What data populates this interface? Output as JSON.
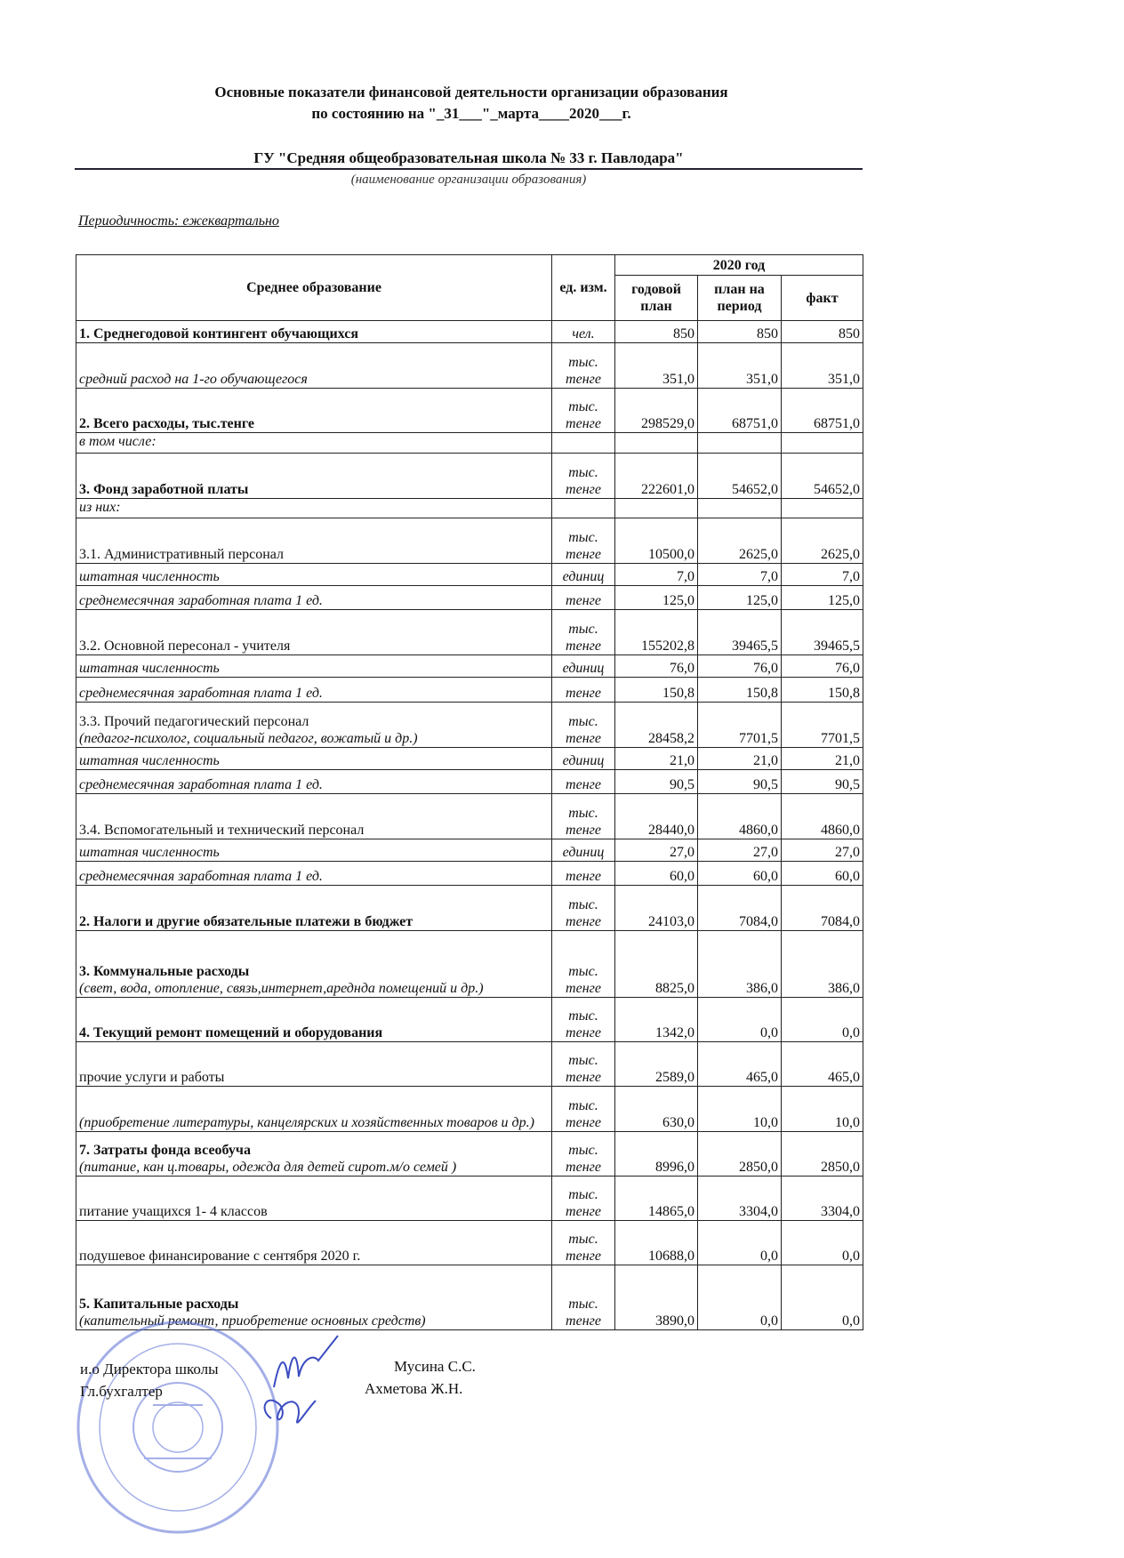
{
  "header": {
    "title_line1": "Основные показатели финансовой деятельности организации образования",
    "title_line2": "по состоянию на \"_31___\"_марта____2020___г.",
    "organization": "ГУ \"Средняя общеобразовательная школа № 33 г. Павлодара\"",
    "organization_caption": "(наименование организации образования)",
    "periodicity": "Периодичность: ежеквартально"
  },
  "table": {
    "col_section": "Среднее образование",
    "col_unit": "ед. изм.",
    "col_year": "2020 год",
    "col_annual": "годовой план",
    "col_period": "план на период",
    "col_fact": "факт",
    "rows": [
      {
        "label": "1. Среднегодовой контингент обучающихся",
        "sub": "",
        "style": "bold",
        "unit": "чел.",
        "annual": "850",
        "period": "850",
        "fact": "850"
      },
      {
        "label": "средний расход на 1-го обучающегося",
        "sub": "",
        "style": "italic",
        "unit": "тыс. тенге",
        "annual": "351,0",
        "period": "351,0",
        "fact": "351,0"
      },
      {
        "label": "2. Всего расходы, тыс.тенге",
        "sub": "",
        "style": "bold",
        "unit": "тыс. тенге",
        "annual": "298529,0",
        "period": "68751,0",
        "fact": "68751,0"
      },
      {
        "label": "в том числе:",
        "sub": "",
        "style": "italic",
        "unit": "",
        "annual": "",
        "period": "",
        "fact": ""
      },
      {
        "label": "3. Фонд заработной платы",
        "sub": "",
        "style": "bold",
        "unit": "тыс. тенге",
        "annual": "222601,0",
        "period": "54652,0",
        "fact": "54652,0"
      },
      {
        "label": "из них:",
        "sub": "",
        "style": "italic",
        "unit": "",
        "annual": "",
        "period": "",
        "fact": ""
      },
      {
        "label": "3.1. Административный персонал",
        "sub": "",
        "style": "normal",
        "unit": "тыс. тенге",
        "annual": "10500,0",
        "period": "2625,0",
        "fact": "2625,0"
      },
      {
        "label": "штатная численность",
        "sub": "",
        "style": "italic",
        "unit": "единиц",
        "annual": "7,0",
        "period": "7,0",
        "fact": "7,0"
      },
      {
        "label": "среднемесячная заработная плата 1 ед.",
        "sub": "",
        "style": "italic",
        "unit": "тенге",
        "annual": "125,0",
        "period": "125,0",
        "fact": "125,0"
      },
      {
        "label": "3.2. Основной пересонал - учителя",
        "sub": "",
        "style": "normal",
        "unit": "тыс. тенге",
        "annual": "155202,8",
        "period": "39465,5",
        "fact": "39465,5"
      },
      {
        "label": "штатная численность",
        "sub": "",
        "style": "italic",
        "unit": "единиц",
        "annual": "76,0",
        "period": "76,0",
        "fact": "76,0"
      },
      {
        "label": "среднемесячная заработная плата 1 ед.",
        "sub": "",
        "style": "italic",
        "unit": "тенге",
        "annual": "150,8",
        "period": "150,8",
        "fact": "150,8"
      },
      {
        "label": "3.3. Прочий педагогический персонал",
        "sub": "(педагог-психолог, социальный педагог, вожатый и др.)",
        "style": "normal",
        "unit": "тыс. тенге",
        "annual": "28458,2",
        "period": "7701,5",
        "fact": "7701,5"
      },
      {
        "label": "штатная численность",
        "sub": "",
        "style": "italic",
        "unit": "единиц",
        "annual": "21,0",
        "period": "21,0",
        "fact": "21,0"
      },
      {
        "label": "среднемесячная заработная плата 1 ед.",
        "sub": "",
        "style": "italic",
        "unit": "тенге",
        "annual": "90,5",
        "period": "90,5",
        "fact": "90,5"
      },
      {
        "label": "3.4. Вспомогательный и технический персонал",
        "sub": "",
        "style": "normal",
        "unit": "тыс. тенге",
        "annual": "28440,0",
        "period": "4860,0",
        "fact": "4860,0"
      },
      {
        "label": "штатная численность",
        "sub": "",
        "style": "italic",
        "unit": "единиц",
        "annual": "27,0",
        "period": "27,0",
        "fact": "27,0"
      },
      {
        "label": "среднемесячная заработная плата 1 ед.",
        "sub": "",
        "style": "italic",
        "unit": "тенге",
        "annual": "60,0",
        "period": "60,0",
        "fact": "60,0"
      },
      {
        "label": "2. Налоги и другие обязательные платежи в бюджет",
        "sub": "",
        "style": "bold",
        "unit": "тыс. тенге",
        "annual": "24103,0",
        "period": "7084,0",
        "fact": "7084,0"
      },
      {
        "label": "3. Коммунальные расходы",
        "sub": "(свет, вода, отопление, связь,интернет,ареднда помещений и др.)",
        "style": "bold",
        "unit": "тыс. тенге",
        "annual": "8825,0",
        "period": "386,0",
        "fact": "386,0"
      },
      {
        "label": "4. Текущий ремонт помещений и оборудования",
        "sub": "",
        "style": "bold",
        "unit": "тыс. тенге",
        "annual": "1342,0",
        "period": "0,0",
        "fact": "0,0"
      },
      {
        "label": "прочие услуги и работы",
        "sub": "",
        "style": "normal",
        "unit": "тыс. тенге",
        "annual": "2589,0",
        "period": "465,0",
        "fact": "465,0"
      },
      {
        "label": "(приобретение литературы, канцелярских и хозяйственных товаров и др.)",
        "sub": "",
        "style": "italic",
        "unit": "тыс. тенге",
        "annual": "630,0",
        "period": "10,0",
        "fact": "10,0"
      },
      {
        "label": "7. Затраты фонда всеобуча",
        "sub": "(питание, кан ц.товары, одежда для детей сирот.м/о семей )",
        "style": "bold",
        "unit": "тыс. тенге",
        "annual": "8996,0",
        "period": "2850,0",
        "fact": "2850,0"
      },
      {
        "label": "питание учащихся 1- 4 классов",
        "sub": "",
        "style": "normal",
        "unit": "тыс. тенге",
        "annual": "14865,0",
        "period": "3304,0",
        "fact": "3304,0"
      },
      {
        "label": "подушевое финансирование с сентября 2020 г.",
        "sub": "",
        "style": "normal",
        "unit": "тыс. тенге",
        "annual": "10688,0",
        "period": "0,0",
        "fact": "0,0"
      },
      {
        "label": "5. Капитальные расходы",
        "sub": "(капительный ремонт, приобретение основных средств)",
        "style": "bold",
        "unit": "тыс. тенге",
        "annual": "3890,0",
        "period": "0,0",
        "fact": "0,0"
      }
    ]
  },
  "signatures": {
    "director_role": "и.о Директора школы",
    "director_name": "Мусина С.С.",
    "accountant_role": "Гл.бухгалтер",
    "accountant_name": "Ахметова Ж.Н."
  },
  "colors": {
    "stamp": "#5a6fd6",
    "ink": "#3b4cc0"
  }
}
